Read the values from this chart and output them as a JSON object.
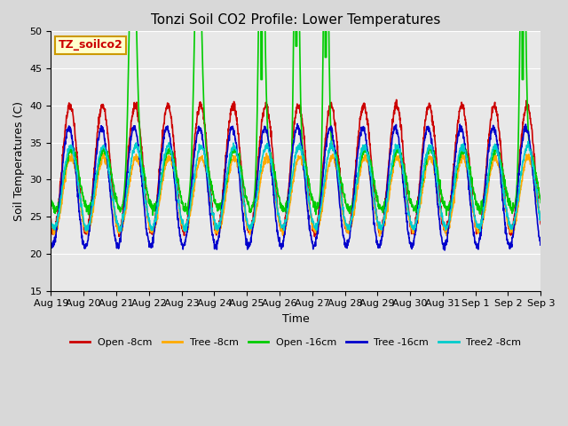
{
  "title": "Tonzi Soil CO2 Profile: Lower Temperatures",
  "xlabel": "Time",
  "ylabel": "Soil Temperatures (C)",
  "ylim": [
    15,
    50
  ],
  "yticks": [
    15,
    20,
    25,
    30,
    35,
    40,
    45,
    50
  ],
  "bg_color": "#e8e8e8",
  "fig_bg_color": "#d8d8d8",
  "series": {
    "Open -8cm": {
      "color": "#cc0000",
      "lw": 1.2
    },
    "Tree -8cm": {
      "color": "#ffaa00",
      "lw": 1.2
    },
    "Open -16cm": {
      "color": "#00cc00",
      "lw": 1.2
    },
    "Tree -16cm": {
      "color": "#0000cc",
      "lw": 1.2
    },
    "Tree2 -8cm": {
      "color": "#00cccc",
      "lw": 1.2
    }
  },
  "label_box": {
    "text": "TZ_soilco2",
    "bg": "#ffffcc",
    "border": "#cc9900",
    "text_color": "#cc0000",
    "fontsize": 9,
    "fontweight": "bold"
  },
  "xtick_labels": [
    "Aug 19",
    "Aug 20",
    "Aug 21",
    "Aug 22",
    "Aug 23",
    "Aug 24",
    "Aug 25",
    "Aug 26",
    "Aug 27",
    "Aug 28",
    "Aug 29",
    "Aug 30",
    "Aug 31",
    "Sep 1",
    "Sep 2",
    "Sep 3"
  ],
  "xtick_positions": [
    0,
    1,
    2,
    3,
    4,
    5,
    6,
    7,
    8,
    9,
    10,
    11,
    12,
    13,
    14,
    15
  ]
}
